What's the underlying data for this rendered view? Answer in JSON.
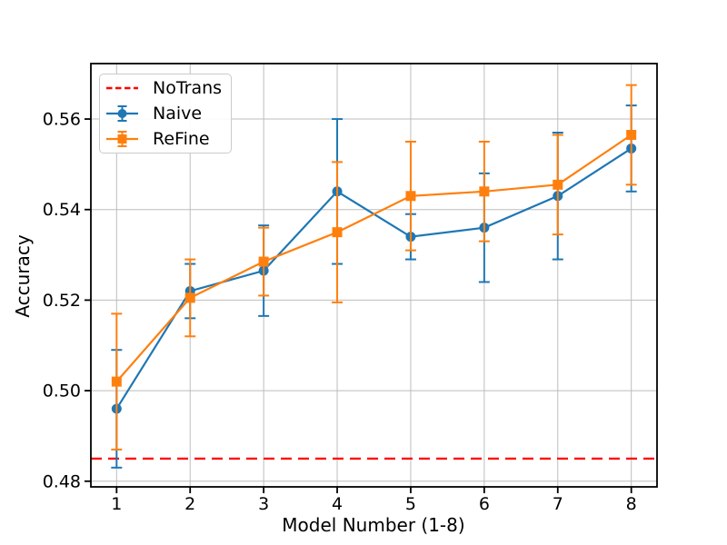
{
  "chart_data": {
    "type": "line",
    "title": "",
    "xlabel": "Model Number (1-8)",
    "ylabel": "Accuracy",
    "x": [
      1,
      2,
      3,
      4,
      5,
      6,
      7,
      8
    ],
    "xlim": [
      0.65,
      8.35
    ],
    "ylim": [
      0.47875,
      0.57225
    ],
    "xticks": [
      1,
      2,
      3,
      4,
      5,
      6,
      7,
      8
    ],
    "xtick_labels": [
      "1",
      "2",
      "3",
      "4",
      "5",
      "6",
      "7",
      "8"
    ],
    "yticks": [
      0.48,
      0.5,
      0.52,
      0.54,
      0.56
    ],
    "ytick_labels": [
      "0.48",
      "0.50",
      "0.52",
      "0.54",
      "0.56"
    ],
    "grid": true,
    "grid_color": "#bdbdbd",
    "legend_position": "upper left",
    "hline": {
      "label": "NoTrans",
      "value": 0.485,
      "color": "#ff0000",
      "style": "dashed"
    },
    "series": [
      {
        "name": "Naive",
        "color": "#1f77b4",
        "marker": "circle",
        "values": [
          0.496,
          0.522,
          0.5265,
          0.544,
          0.534,
          0.536,
          0.543,
          0.5535
        ],
        "errors": [
          0.013,
          0.006,
          0.01,
          0.016,
          0.005,
          0.012,
          0.014,
          0.0095
        ]
      },
      {
        "name": "ReFine",
        "color": "#ff7f0e",
        "marker": "square",
        "values": [
          0.502,
          0.5205,
          0.5285,
          0.535,
          0.543,
          0.544,
          0.5455,
          0.5565
        ],
        "errors": [
          0.015,
          0.0085,
          0.0075,
          0.0155,
          0.012,
          0.011,
          0.011,
          0.011
        ]
      }
    ],
    "legend": [
      {
        "label": "NoTrans",
        "color": "#ff0000",
        "sample": "dashed-line"
      },
      {
        "label": "Naive",
        "color": "#1f77b4",
        "sample": "errorbar-circle"
      },
      {
        "label": "ReFine",
        "color": "#ff7f0e",
        "sample": "errorbar-square"
      }
    ]
  }
}
